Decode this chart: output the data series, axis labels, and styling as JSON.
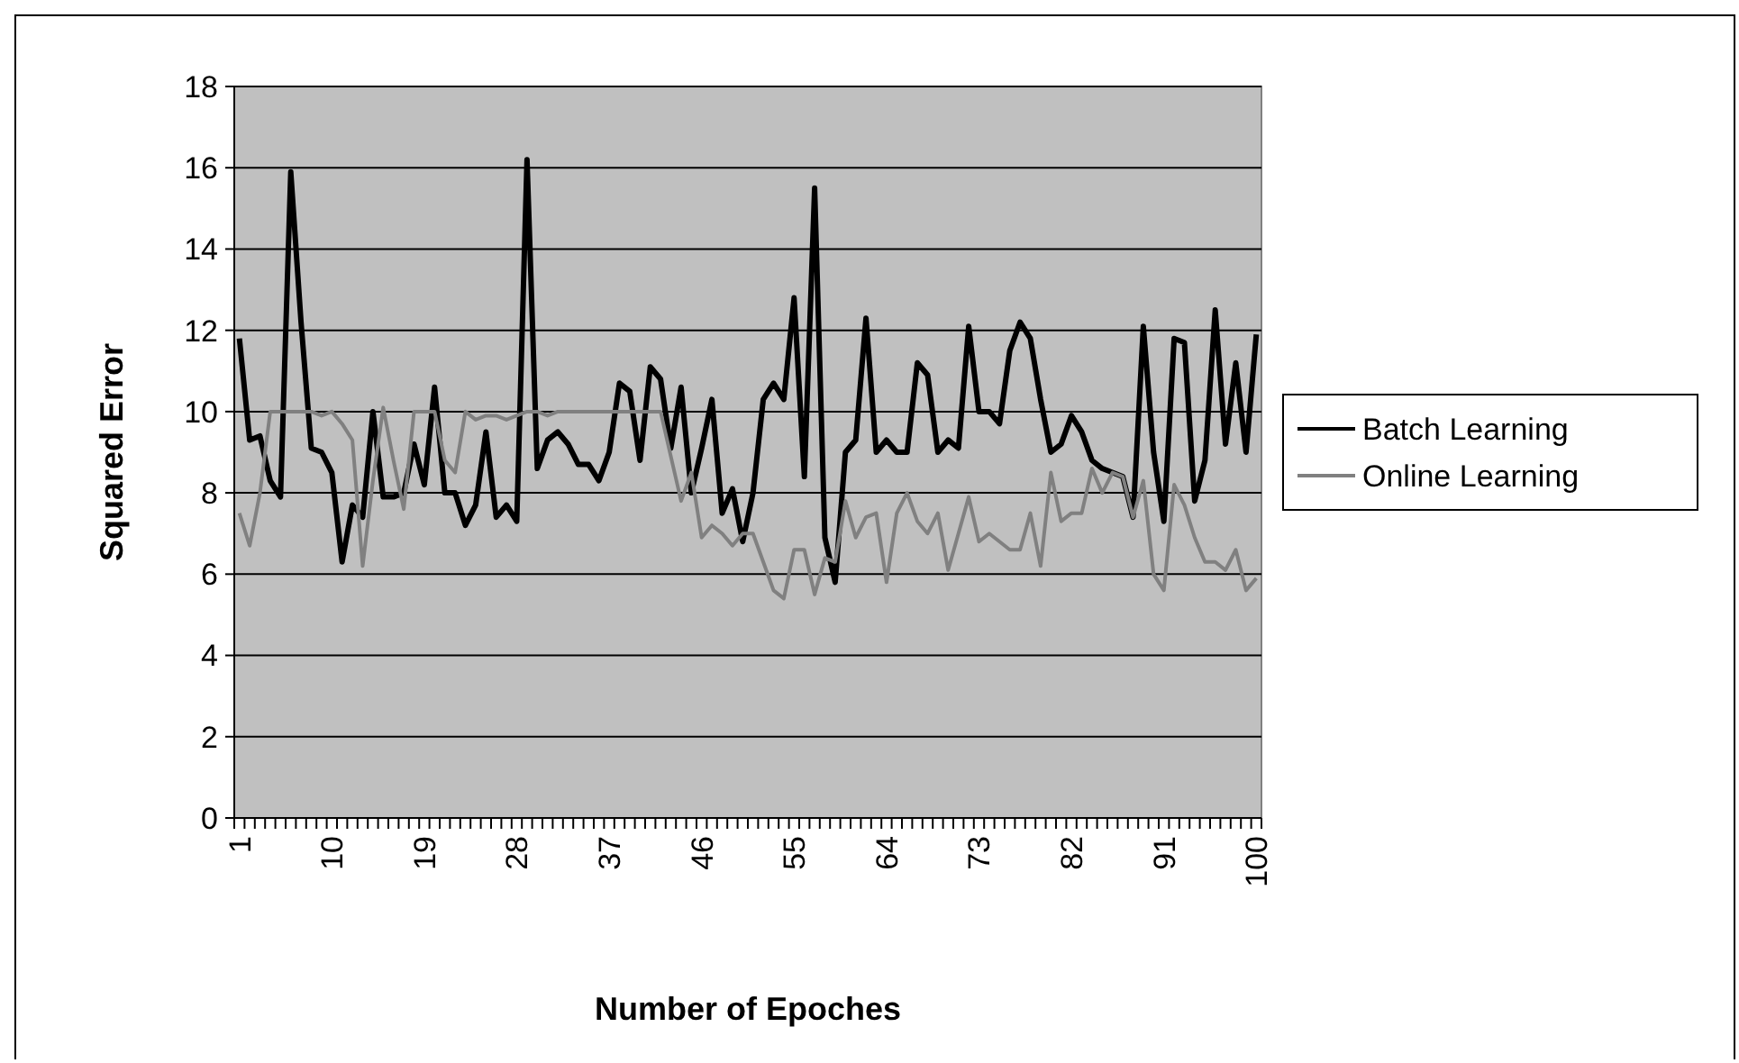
{
  "chart_data": {
    "type": "line",
    "xlabel": "Number of Epoches",
    "ylabel": "Squared Error",
    "categories": [
      "1",
      null,
      null,
      null,
      null,
      null,
      null,
      null,
      null,
      "10",
      null,
      null,
      null,
      null,
      null,
      null,
      null,
      null,
      "19",
      null,
      null,
      null,
      null,
      null,
      null,
      null,
      null,
      "28",
      null,
      null,
      null,
      null,
      null,
      null,
      null,
      null,
      "37",
      null,
      null,
      null,
      null,
      null,
      null,
      null,
      null,
      "46",
      null,
      null,
      null,
      null,
      null,
      null,
      null,
      null,
      "55",
      null,
      null,
      null,
      null,
      null,
      null,
      null,
      null,
      "64",
      null,
      null,
      null,
      null,
      null,
      null,
      null,
      null,
      "73",
      null,
      null,
      null,
      null,
      null,
      null,
      null,
      null,
      "82",
      null,
      null,
      null,
      null,
      null,
      null,
      null,
      null,
      "91",
      null,
      null,
      null,
      null,
      null,
      null,
      null,
      null,
      "100"
    ],
    "series": [
      {
        "name": "Batch Learning",
        "color": "#000000",
        "values": [
          11.8,
          9.3,
          9.4,
          8.3,
          7.9,
          15.9,
          12.2,
          9.1,
          9.0,
          8.5,
          6.3,
          7.7,
          7.4,
          10.0,
          7.9,
          7.9,
          8.0,
          9.2,
          8.2,
          10.6,
          8.0,
          8.0,
          7.2,
          7.7,
          9.5,
          7.4,
          7.7,
          7.3,
          16.2,
          8.6,
          9.3,
          9.5,
          9.2,
          8.7,
          8.7,
          8.3,
          9.0,
          10.7,
          10.5,
          8.8,
          11.1,
          10.8,
          9.1,
          10.6,
          8.0,
          9.1,
          10.3,
          7.5,
          8.1,
          6.8,
          8.0,
          10.3,
          10.7,
          10.3,
          12.8,
          8.4,
          15.5,
          6.9,
          5.8,
          9.0,
          9.3,
          12.3,
          9.0,
          9.3,
          9.0,
          9.0,
          11.2,
          10.9,
          9.0,
          9.3,
          9.1,
          12.1,
          10.0,
          10.0,
          9.7,
          11.5,
          12.2,
          11.8,
          10.3,
          9.0,
          9.2,
          9.9,
          9.5,
          8.8,
          8.6,
          8.5,
          8.4,
          7.4,
          12.1,
          9.0,
          7.3,
          11.8,
          11.7,
          7.8,
          8.8,
          12.5,
          9.2,
          11.2,
          9.0,
          11.9
        ]
      },
      {
        "name": "Online Learning",
        "color": "#808080",
        "values": [
          7.5,
          6.7,
          8.0,
          10.0,
          10.0,
          10.0,
          10.0,
          10.0,
          9.9,
          10.0,
          9.7,
          9.3,
          6.2,
          8.3,
          10.1,
          8.8,
          7.6,
          10.0,
          10.0,
          10.0,
          8.8,
          8.5,
          10.0,
          9.8,
          9.9,
          9.9,
          9.8,
          9.9,
          10.0,
          10.0,
          9.9,
          10.0,
          10.0,
          10.0,
          10.0,
          10.0,
          10.0,
          10.0,
          10.0,
          10.0,
          10.0,
          10.0,
          8.9,
          7.8,
          8.5,
          6.9,
          7.2,
          7.0,
          6.7,
          7.0,
          7.0,
          6.3,
          5.6,
          5.4,
          6.6,
          6.6,
          5.5,
          6.4,
          6.3,
          7.8,
          6.9,
          7.4,
          7.5,
          5.8,
          7.5,
          8.0,
          7.3,
          7.0,
          7.5,
          6.1,
          7.0,
          7.9,
          6.8,
          7.0,
          6.8,
          6.6,
          6.6,
          7.5,
          6.2,
          8.5,
          7.3,
          7.5,
          7.5,
          8.6,
          8.0,
          8.5,
          8.4,
          7.4,
          8.3,
          6.0,
          5.6,
          8.2,
          7.7,
          6.9,
          6.3,
          6.3,
          6.1,
          6.6,
          5.6,
          5.9
        ]
      }
    ],
    "ylim": [
      0,
      18
    ],
    "yticks": [
      0,
      2,
      4,
      6,
      8,
      10,
      12,
      14,
      16,
      18
    ],
    "grid": "y",
    "legend": "right",
    "marker": "none",
    "line_style": "solid"
  }
}
